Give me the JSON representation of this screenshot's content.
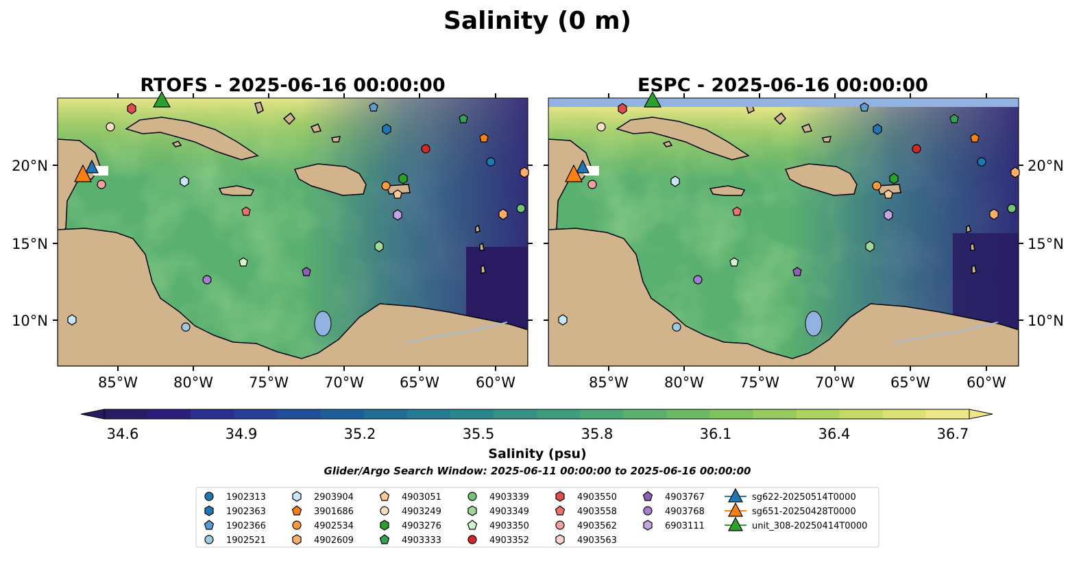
{
  "figure": {
    "title": "Salinity (0 m)",
    "search_window": "Glider/Argo Search Window: 2025-06-11 00:00:00 to 2025-06-16 00:00:00"
  },
  "maps": [
    {
      "id": "rtofs",
      "title": "RTOFS - 2025-06-16 00:00:00"
    },
    {
      "id": "espc",
      "title": "ESPC - 2025-06-16 00:00:00"
    }
  ],
  "axes": {
    "lon_ticks": [
      "85°W",
      "80°W",
      "75°W",
      "70°W",
      "65°W",
      "60°W"
    ],
    "lat_ticks": [
      "20°N",
      "15°N",
      "10°N"
    ],
    "lon_range": [
      -89,
      -58
    ],
    "lat_range": [
      7,
      24
    ]
  },
  "colorbar": {
    "label": "Salinity (psu)",
    "ticks": [
      "34.6",
      "34.9",
      "35.2",
      "35.5",
      "35.8",
      "36.1",
      "36.4",
      "36.7"
    ],
    "range": [
      34.6,
      36.7
    ],
    "colors": [
      "#271c63",
      "#2a1e7a",
      "#2b2d8f",
      "#26409a",
      "#1f4f9a",
      "#1c5f98",
      "#1f6e96",
      "#227b92",
      "#2a878c",
      "#339285",
      "#3d9d7e",
      "#4aa777",
      "#5ab06f",
      "#6cb967",
      "#81c25f",
      "#98cb5d",
      "#afd35f",
      "#c6da66",
      "#dbe175",
      "#ece789"
    ]
  },
  "map_colors": {
    "land": "#d2b48c",
    "pacific": "#281b62",
    "lake": "#92b3e1",
    "espc_mask": "#92b3e1"
  },
  "legend": {
    "columns": [
      [
        {
          "label": "1902313",
          "marker": "circle",
          "color": "#1f77b4"
        },
        {
          "label": "1902363",
          "marker": "hexagon",
          "color": "#1f77b4"
        },
        {
          "label": "1902366",
          "marker": "pentagon",
          "color": "#5b9bd0"
        },
        {
          "label": "1902521",
          "marker": "circle",
          "color": "#9ecae1"
        }
      ],
      [
        {
          "label": "2903904",
          "marker": "hexagon",
          "color": "#c6e7f7"
        },
        {
          "label": "3901686",
          "marker": "pentagon",
          "color": "#ff7f0e"
        },
        {
          "label": "4902534",
          "marker": "circle",
          "color": "#fd9a3a"
        },
        {
          "label": "4902609",
          "marker": "hexagon",
          "color": "#fdae6b"
        }
      ],
      [
        {
          "label": "4903051",
          "marker": "pentagon",
          "color": "#fdc995"
        },
        {
          "label": "4903249",
          "marker": "circle",
          "color": "#fde0c2"
        },
        {
          "label": "4903276",
          "marker": "hexagon",
          "color": "#2ca02c"
        },
        {
          "label": "4903333",
          "marker": "pentagon",
          "color": "#31a354"
        }
      ],
      [
        {
          "label": "4903339",
          "marker": "circle",
          "color": "#74c476"
        },
        {
          "label": "4903349",
          "marker": "hexagon",
          "color": "#a1d99b"
        },
        {
          "label": "4903350",
          "marker": "pentagon",
          "color": "#d4f5cc"
        },
        {
          "label": "4903352",
          "marker": "circle",
          "color": "#d62728"
        }
      ],
      [
        {
          "label": "4903550",
          "marker": "hexagon",
          "color": "#e34a4a"
        },
        {
          "label": "4903558",
          "marker": "pentagon",
          "color": "#ee7171"
        },
        {
          "label": "4903562",
          "marker": "circle",
          "color": "#f4a0a0"
        },
        {
          "label": "4903563",
          "marker": "hexagon",
          "color": "#fbd2d2"
        }
      ],
      [
        {
          "label": "4903767",
          "marker": "pentagon",
          "color": "#8e5fb8"
        },
        {
          "label": "4903768",
          "marker": "circle",
          "color": "#a47fd0"
        },
        {
          "label": "6903111",
          "marker": "hexagon",
          "color": "#c3a5e6"
        }
      ],
      [
        {
          "label": "sg622-20250514T0000",
          "marker": "triangle",
          "color": "#1f77b4"
        },
        {
          "label": "sg651-20250428T0000",
          "marker": "triangle",
          "color": "#ff7f0e"
        },
        {
          "label": "unit_308-20250414T0000",
          "marker": "triangle",
          "color": "#2ca02c"
        }
      ]
    ]
  }
}
